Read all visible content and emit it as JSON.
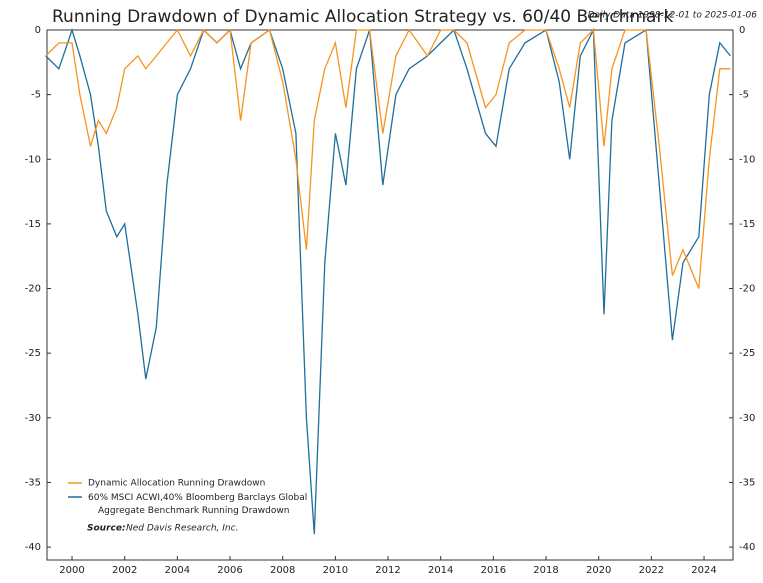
{
  "chart_data": {
    "type": "line",
    "title": "Running Drawdown of Dynamic Allocation Strategy vs. 60/40 Benchmark",
    "subtitle": "Daily Data 1998-12-01 to 2025-01-06",
    "source_label": "Source:",
    "source": "Ned Davis Research, Inc.",
    "x": [
      1999.0,
      1999.5,
      2000.0,
      2000.3,
      2000.7,
      2001.0,
      2001.3,
      2001.7,
      2002.0,
      2002.5,
      2002.8,
      2003.2,
      2003.6,
      2004.0,
      2004.5,
      2005.0,
      2005.5,
      2006.0,
      2006.4,
      2006.8,
      2007.5,
      2008.0,
      2008.5,
      2008.9,
      2009.2,
      2009.6,
      2010.0,
      2010.4,
      2010.8,
      2011.3,
      2011.8,
      2012.3,
      2012.8,
      2013.5,
      2014.0,
      2014.5,
      2015.0,
      2015.7,
      2016.1,
      2016.6,
      2017.2,
      2018.0,
      2018.5,
      2018.9,
      2019.3,
      2019.8,
      2020.2,
      2020.5,
      2021.0,
      2021.8,
      2022.3,
      2022.8,
      2023.2,
      2023.8,
      2024.2,
      2024.6,
      2025.0
    ],
    "series": [
      {
        "name": "Dynamic Allocation Running Drawdown",
        "color": "#f7941d",
        "values": [
          -2,
          -1,
          -1,
          -5,
          -9,
          -7,
          -8,
          -6,
          -3,
          -2,
          -3,
          -2,
          -1,
          0,
          -2,
          0,
          -1,
          0,
          -7,
          -1,
          0,
          -4,
          -10,
          -17,
          -7,
          -3,
          -1,
          -6,
          0,
          0,
          -8,
          -2,
          0,
          -2,
          0,
          0,
          -1,
          -6,
          -5,
          -1,
          0,
          0,
          -3,
          -6,
          -1,
          0,
          -9,
          -3,
          0,
          0,
          -9,
          -19,
          -17,
          -20,
          -10,
          -3,
          -3
        ]
      },
      {
        "name": "60% MSCI ACWI,40% Bloomberg Barclays Global Aggregate Benchmark Running Drawdown",
        "color": "#1f6e9c",
        "values": [
          -2,
          -3,
          0,
          -2,
          -5,
          -9,
          -14,
          -16,
          -15,
          -22,
          -27,
          -23,
          -12,
          -5,
          -3,
          0,
          -1,
          0,
          -3,
          -1,
          0,
          -3,
          -8,
          -30,
          -39,
          -18,
          -8,
          -12,
          -3,
          0,
          -12,
          -5,
          -3,
          -2,
          -1,
          0,
          -3,
          -8,
          -9,
          -3,
          -1,
          0,
          -4,
          -10,
          -2,
          0,
          -22,
          -7,
          -1,
          0,
          -12,
          -24,
          -18,
          -16,
          -5,
          -1,
          -2
        ]
      }
    ],
    "xlim": [
      1999.05,
      2025.1
    ],
    "xticks": [
      2000,
      2002,
      2004,
      2006,
      2008,
      2010,
      2012,
      2014,
      2016,
      2018,
      2020,
      2022,
      2024
    ],
    "ylim": [
      -41,
      0
    ],
    "yticks": [
      0,
      -5,
      -10,
      -15,
      -20,
      -25,
      -30,
      -35,
      -40
    ],
    "grid": false
  }
}
